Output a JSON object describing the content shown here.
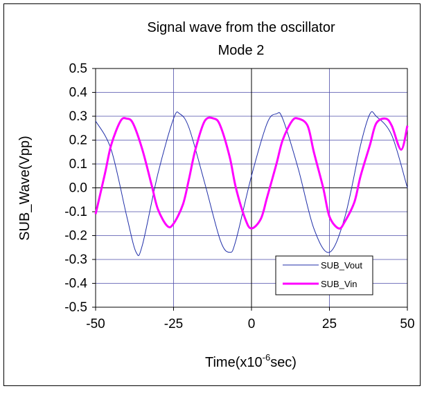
{
  "chart_data": {
    "type": "line",
    "title": "Signal wave from the oscillator",
    "subtitle": "Mode 2",
    "xlabel_prefix": "Time(x10",
    "xlabel_exp": "-6",
    "xlabel_suffix": "sec)",
    "ylabel": "SUB_Wave(Vpp)",
    "xlim": [
      -50,
      50
    ],
    "ylim": [
      -0.5,
      0.5
    ],
    "x_ticks": [
      "-50",
      "-25",
      "0",
      "25",
      "50"
    ],
    "y_ticks": [
      "0.5",
      "0.4",
      "0.3",
      "0.2",
      "0.1",
      "0.0",
      "-0.1",
      "-0.2",
      "-0.3",
      "-0.4",
      "-0.5"
    ],
    "grid": true,
    "legend_position": "bottom-right",
    "series": [
      {
        "name": "SUB_Vout",
        "color": "#1f2ea8",
        "style": "thin",
        "x": [
          -50,
          -45,
          -40,
          -37,
          -35,
          -30,
          -25,
          -23,
          -20,
          -15,
          -10,
          -7,
          -5,
          0,
          5,
          8,
          10,
          15,
          20,
          25,
          30,
          35,
          38,
          40,
          45,
          50
        ],
        "y": [
          0.28,
          0.16,
          -0.12,
          -0.27,
          -0.24,
          0.06,
          0.29,
          0.31,
          0.25,
          0.02,
          -0.22,
          -0.27,
          -0.22,
          0.05,
          0.27,
          0.31,
          0.29,
          0.08,
          -0.17,
          -0.27,
          -0.12,
          0.18,
          0.31,
          0.3,
          0.22,
          0.0
        ]
      },
      {
        "name": "SUB_Vin",
        "color": "#ff00ff",
        "style": "thick",
        "x": [
          -50,
          -47,
          -45,
          -42,
          -40,
          -38,
          -35,
          -32,
          -30,
          -27,
          -25,
          -22,
          -20,
          -18,
          -15,
          -12,
          -10,
          -7,
          -5,
          -2,
          0,
          3,
          5,
          8,
          10,
          13,
          15,
          18,
          20,
          23,
          25,
          28,
          30,
          33,
          35,
          38,
          40,
          43,
          45,
          48,
          50
        ],
        "y": [
          -0.11,
          0.06,
          0.18,
          0.28,
          0.29,
          0.27,
          0.16,
          0.01,
          -0.09,
          -0.16,
          -0.15,
          -0.07,
          0.04,
          0.16,
          0.28,
          0.29,
          0.26,
          0.13,
          0.0,
          -0.13,
          -0.17,
          -0.13,
          -0.04,
          0.1,
          0.2,
          0.28,
          0.29,
          0.26,
          0.15,
          0.0,
          -0.12,
          -0.17,
          -0.14,
          -0.06,
          0.05,
          0.18,
          0.27,
          0.29,
          0.26,
          0.16,
          0.26
        ]
      }
    ]
  }
}
